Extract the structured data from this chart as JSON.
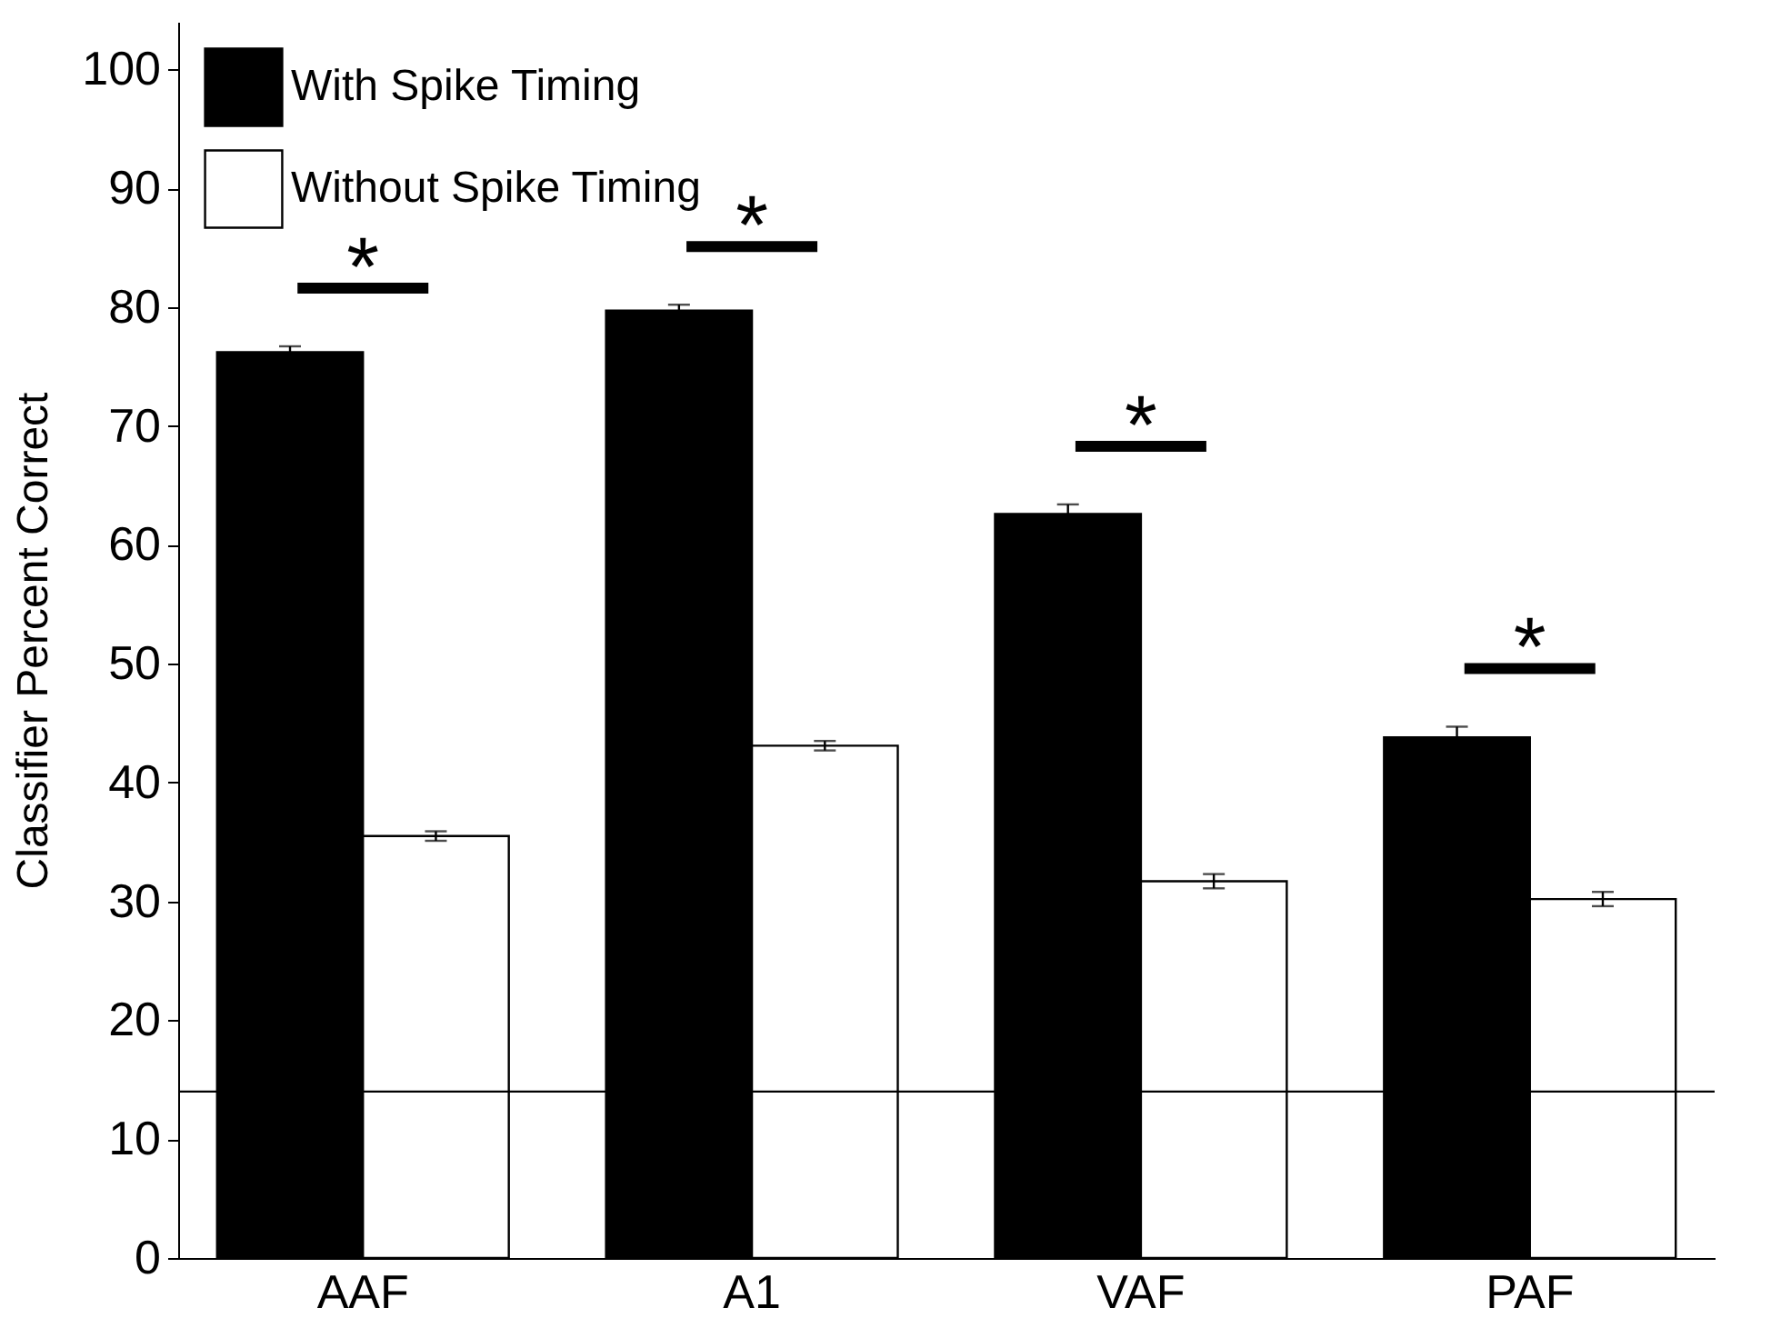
{
  "chart_data": {
    "type": "bar",
    "ylabel": "Classifier Percent Correct",
    "categories": [
      "AAF",
      "A1",
      "VAF",
      "PAF"
    ],
    "series": [
      {
        "name": "With Spike Timing",
        "color": "#000000",
        "values": [
          76.2,
          79.7,
          62.6,
          43.8
        ],
        "errors": [
          0.5,
          0.5,
          0.8,
          0.9
        ]
      },
      {
        "name": "Without Spike Timing",
        "color": "#ffffff",
        "values": [
          35.5,
          43.1,
          31.7,
          30.2
        ],
        "errors": [
          0.4,
          0.4,
          0.6,
          0.6
        ]
      }
    ],
    "ylim": [
      0,
      104
    ],
    "yticks": [
      0,
      10,
      20,
      30,
      40,
      50,
      60,
      70,
      80,
      90,
      100
    ],
    "grid": false,
    "legend": "top left",
    "ref_lines": [
      {
        "axis": "y",
        "value": 14,
        "label": null
      }
    ],
    "annotations": [
      "*",
      "*",
      "*",
      "*"
    ]
  }
}
